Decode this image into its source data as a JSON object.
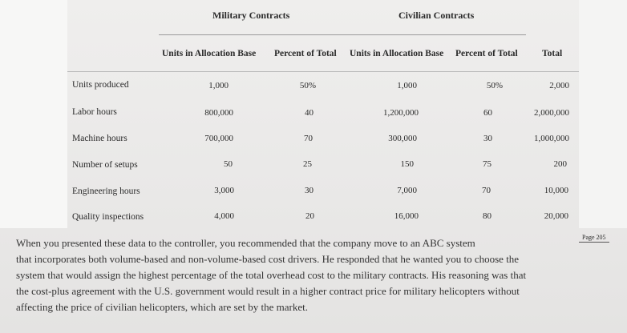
{
  "table": {
    "group_headers": [
      "Military Contracts",
      "Civilian Contracts"
    ],
    "column_headers": [
      "Units in Allocation Base",
      "Percent of Total",
      "Units in Allocation Base",
      "Percent of Total",
      "Total"
    ],
    "rows": [
      {
        "label": "Units produced",
        "values": [
          "1,000",
          "50%",
          "1,000",
          "50%",
          "2,000"
        ]
      },
      {
        "label": "Labor hours",
        "values": [
          "800,000",
          "40",
          "1,200,000",
          "60",
          "2,000,000"
        ]
      },
      {
        "label": "Machine hours",
        "values": [
          "700,000",
          "70",
          "300,000",
          "30",
          "1,000,000"
        ]
      },
      {
        "label": "Number of setups",
        "values": [
          "50",
          "25",
          "150",
          "75",
          "200"
        ]
      },
      {
        "label": "Engineering hours",
        "values": [
          "3,000",
          "30",
          "7,000",
          "70",
          "10,000"
        ]
      },
      {
        "label": "Quality inspections",
        "values": [
          "4,000",
          "20",
          "16,000",
          "80",
          "20,000"
        ]
      }
    ]
  },
  "page_tag": "Page 205",
  "paragraph_lines": [
    "When you presented these data to the controller, you recommended that the company move to an ABC system",
    "that incorporates both volume-based and non-volume-based cost drivers. He responded that he wanted you to choose the",
    "system that would assign the highest percentage of the total overhead cost to the military contracts. His reasoning was that",
    "the cost-plus agreement with the U.S. government would result in a higher contract price for military helicopters without",
    "affecting the price of civilian helicopters, which are set by the market."
  ]
}
